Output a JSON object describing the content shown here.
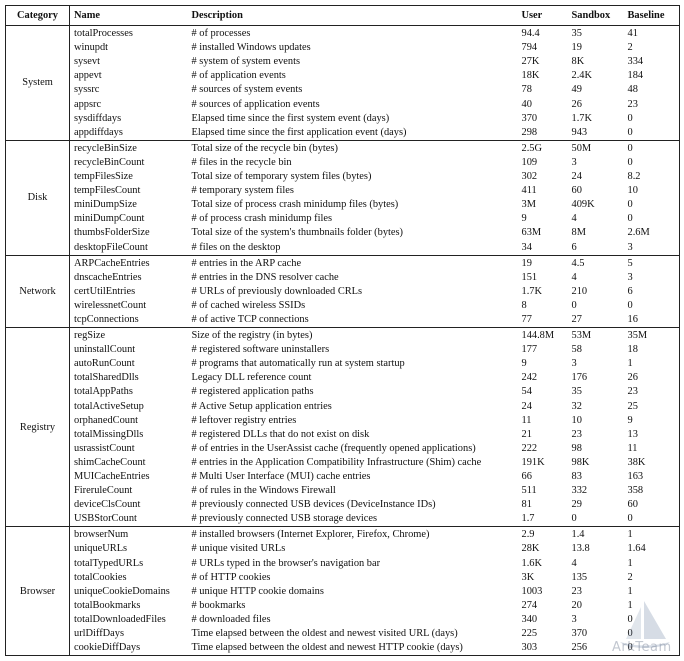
{
  "table": {
    "headers": {
      "category": "Category",
      "name": "Name",
      "description": "Description",
      "user": "User",
      "sandbox": "Sandbox",
      "baseline": "Baseline"
    },
    "groups": [
      {
        "category": "System",
        "rows": [
          {
            "name": "totalProcesses",
            "description": "# of processes",
            "user": "94.4",
            "sandbox": "35",
            "baseline": "41"
          },
          {
            "name": "winupdt",
            "description": "# installed Windows updates",
            "user": "794",
            "sandbox": "19",
            "baseline": "2"
          },
          {
            "name": "sysevt",
            "description": "# system of system events",
            "user": "27K",
            "sandbox": "8K",
            "baseline": "334"
          },
          {
            "name": "appevt",
            "description": "# of application events",
            "user": "18K",
            "sandbox": "2.4K",
            "baseline": "184"
          },
          {
            "name": "syssrc",
            "description": "# sources of system events",
            "user": "78",
            "sandbox": "49",
            "baseline": "48"
          },
          {
            "name": "appsrc",
            "description": "# sources of application events",
            "user": "40",
            "sandbox": "26",
            "baseline": "23"
          },
          {
            "name": "sysdiffdays",
            "description": "Elapsed time since the first system event (days)",
            "user": "370",
            "sandbox": "1.7K",
            "baseline": "0"
          },
          {
            "name": "appdiffdays",
            "description": "Elapsed time since the first application event (days)",
            "user": "298",
            "sandbox": "943",
            "baseline": "0"
          }
        ]
      },
      {
        "category": "Disk",
        "rows": [
          {
            "name": "recycleBinSize",
            "description": "Total size of the recycle bin (bytes)",
            "user": "2.5G",
            "sandbox": "50M",
            "baseline": "0"
          },
          {
            "name": "recycleBinCount",
            "description": "# files in the recycle bin",
            "user": "109",
            "sandbox": "3",
            "baseline": "0"
          },
          {
            "name": "tempFilesSize",
            "description": "Total size of temporary system files (bytes)",
            "user": "302",
            "sandbox": "24",
            "baseline": "8.2"
          },
          {
            "name": "tempFilesCount",
            "description": "# temporary system files",
            "user": "411",
            "sandbox": "60",
            "baseline": "10"
          },
          {
            "name": "miniDumpSize",
            "description": "Total size of process crash minidump files (bytes)",
            "user": "3M",
            "sandbox": "409K",
            "baseline": "0"
          },
          {
            "name": "miniDumpCount",
            "description": "# of process crash minidump files",
            "user": "9",
            "sandbox": "4",
            "baseline": "0"
          },
          {
            "name": "thumbsFolderSize",
            "description": "Total size of the system's thumbnails folder (bytes)",
            "user": "63M",
            "sandbox": "8M",
            "baseline": "2.6M"
          },
          {
            "name": "desktopFileCount",
            "description": "# files on the desktop",
            "user": "34",
            "sandbox": "6",
            "baseline": "3"
          }
        ]
      },
      {
        "category": "Network",
        "rows": [
          {
            "name": "ARPCacheEntries",
            "description": "# entries in the ARP cache",
            "user": "19",
            "sandbox": "4.5",
            "baseline": "5"
          },
          {
            "name": "dnscacheEntries",
            "description": "# entries in the DNS resolver cache",
            "user": "151",
            "sandbox": "4",
            "baseline": "3"
          },
          {
            "name": "certUtilEntries",
            "description": "# URLs of previously downloaded CRLs",
            "user": "1.7K",
            "sandbox": "210",
            "baseline": "6"
          },
          {
            "name": "wirelessnetCount",
            "description": "# of cached wireless SSIDs",
            "user": "8",
            "sandbox": "0",
            "baseline": "0"
          },
          {
            "name": "tcpConnections",
            "description": "# of active TCP connections",
            "user": "77",
            "sandbox": "27",
            "baseline": "16"
          }
        ]
      },
      {
        "category": "Registry",
        "rows": [
          {
            "name": "regSize",
            "description": "Size of the registry (in bytes)",
            "user": "144.8M",
            "sandbox": "53M",
            "baseline": "35M"
          },
          {
            "name": "uninstallCount",
            "description": "# registered software uninstallers",
            "user": "177",
            "sandbox": "58",
            "baseline": "18"
          },
          {
            "name": "autoRunCount",
            "description": "# programs that automatically run at system startup",
            "user": "9",
            "sandbox": "3",
            "baseline": "1"
          },
          {
            "name": "totalSharedDlls",
            "description": "Legacy DLL reference count",
            "user": "242",
            "sandbox": "176",
            "baseline": "26"
          },
          {
            "name": "totalAppPaths",
            "description": "# registered application paths",
            "user": "54",
            "sandbox": "35",
            "baseline": "23"
          },
          {
            "name": "totalActiveSetup",
            "description": "# Active Setup application entries",
            "user": "24",
            "sandbox": "32",
            "baseline": "25"
          },
          {
            "name": "orphanedCount",
            "description": "# leftover registry entries",
            "user": "11",
            "sandbox": "10",
            "baseline": "9"
          },
          {
            "name": "totalMissingDlls",
            "description": "# registered DLLs that do not exist on disk",
            "user": "21",
            "sandbox": "23",
            "baseline": "13"
          },
          {
            "name": "usrassistCount",
            "description": "# of entries in the UserAssist cache (frequently opened applications)",
            "user": "222",
            "sandbox": "98",
            "baseline": "11"
          },
          {
            "name": "shimCacheCount",
            "description": "# entries in the Application Compatibility Infrastructure (Shim) cache",
            "user": "191K",
            "sandbox": "98K",
            "baseline": "38K"
          },
          {
            "name": "MUICacheEntries",
            "description": "# Multi User Interface (MUI) cache entries",
            "user": "66",
            "sandbox": "83",
            "baseline": "163"
          },
          {
            "name": "FireruleCount",
            "description": "# of rules in the Windows Firewall",
            "user": "511",
            "sandbox": "332",
            "baseline": "358"
          },
          {
            "name": "deviceClsCount",
            "description": "# previously connected USB devices (DeviceInstance IDs)",
            "user": "81",
            "sandbox": "29",
            "baseline": "60"
          },
          {
            "name": "USBStorCount",
            "description": "# previously connected USB storage devices",
            "user": "1.7",
            "sandbox": "0",
            "baseline": "0"
          }
        ]
      },
      {
        "category": "Browser",
        "rows": [
          {
            "name": "browserNum",
            "description": "# installed browsers (Internet Explorer, Firefox, Chrome)",
            "user": "2.9",
            "sandbox": "1.4",
            "baseline": "1"
          },
          {
            "name": "uniqueURLs",
            "description": "# unique visited URLs",
            "user": "28K",
            "sandbox": "13.8",
            "baseline": "1.64"
          },
          {
            "name": "totalTypedURLs",
            "description": "# URLs typed in the browser's navigation bar",
            "user": "1.6K",
            "sandbox": "4",
            "baseline": "1"
          },
          {
            "name": "totalCookies",
            "description": "# of HTTP cookies",
            "user": "3K",
            "sandbox": "135",
            "baseline": "2"
          },
          {
            "name": "uniqueCookieDomains",
            "description": "# unique HTTP cookie domains",
            "user": "1003",
            "sandbox": "23",
            "baseline": "1"
          },
          {
            "name": "totalBookmarks",
            "description": "# bookmarks",
            "user": "274",
            "sandbox": "20",
            "baseline": "1"
          },
          {
            "name": "totalDownloadedFiles",
            "description": "# downloaded files",
            "user": "340",
            "sandbox": "3",
            "baseline": "0"
          },
          {
            "name": "urlDiffDays",
            "description": "Time elapsed between the oldest and newest visited URL (days)",
            "user": "225",
            "sandbox": "370",
            "baseline": "0"
          },
          {
            "name": "cookieDiffDays",
            "description": "Time elapsed between the oldest and newest HTTP cookie (days)",
            "user": "303",
            "sandbox": "256",
            "baseline": "0"
          }
        ]
      }
    ]
  },
  "watermark": {
    "text": "ArkTeam",
    "icon": "sailboat-logo-icon"
  }
}
